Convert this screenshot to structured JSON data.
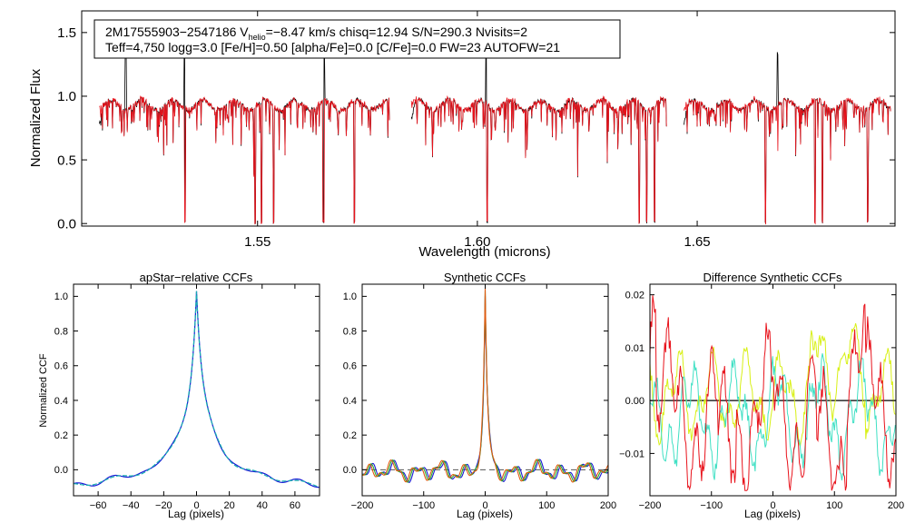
{
  "colors": {
    "black": "#000000",
    "red": "#e8121b",
    "blue": "#1a1ad6",
    "teal": "#18b0b0",
    "orange": "#e05a10",
    "green": "#29a82c",
    "yellow": "#d8f015",
    "cyan": "#3fe0c4",
    "dashed": "#555555"
  },
  "chart_data": [
    {
      "type": "line",
      "name": "spectrum",
      "xlabel": "Wavelength (microns)",
      "ylabel": "Normalized Flux",
      "xlim": [
        1.51,
        1.695
      ],
      "ylim": [
        -0.02,
        1.67
      ],
      "xticks": [
        1.55,
        1.6,
        1.65
      ],
      "xtick_labels": [
        "1.55",
        "1.60",
        "1.65"
      ],
      "yticks": [
        0.0,
        0.5,
        1.0,
        1.5
      ],
      "ytick_labels": [
        "0.0",
        "0.5",
        "1.0",
        "1.5"
      ],
      "info_line1_prefix": "2M17555903−2547186  V",
      "info_line1_sub": "helio",
      "info_line1_suffix": "=−8.47 km/s  chisq=12.94  S/N=290.3  Nvisits=2",
      "info_line2": "Teff=4,750 logg=3.0 [Fe/H]=0.50 [alpha/Fe]=0.0 [C/Fe]=0.0 FW=23 AUTOFW=21",
      "chips": [
        [
          1.514,
          1.58
        ],
        [
          1.585,
          1.643
        ],
        [
          1.647,
          1.694
        ]
      ],
      "continuum": 0.93,
      "series": [
        {
          "name": "observed",
          "color": "black"
        },
        {
          "name": "model",
          "color": "red"
        }
      ],
      "deep_lines": [
        1.5335,
        1.5495,
        1.5509,
        1.5537,
        1.565,
        1.572,
        1.6022,
        1.6368,
        1.6385,
        1.6403,
        1.6655,
        1.6768,
        1.6785,
        1.6888
      ],
      "spikes": [
        1.52,
        1.5334,
        1.5652,
        1.602,
        1.6683
      ]
    },
    {
      "type": "line",
      "name": "apstar-ccf",
      "title": "apStar−relative CCFs",
      "xlabel": "Lag (pixels)",
      "ylabel": "Normalized CCF",
      "xlim": [
        -75,
        75
      ],
      "ylim": [
        -0.15,
        1.07
      ],
      "xticks": [
        -60,
        -40,
        -20,
        0,
        20,
        40,
        60
      ],
      "xtick_labels": [
        "−60",
        "−40",
        "−20",
        "0",
        "20",
        "40",
        "60"
      ],
      "yticks": [
        0.0,
        0.2,
        0.4,
        0.6,
        0.8,
        1.0
      ],
      "ytick_labels": [
        "0.0",
        "0.2",
        "0.4",
        "0.6",
        "0.8",
        "1.0"
      ],
      "series": [
        {
          "name": "visit-1",
          "color": "blue"
        },
        {
          "name": "visit-2",
          "color": "teal",
          "dashed": true
        }
      ],
      "peak": 1.0
    },
    {
      "type": "line",
      "name": "synthetic-ccf",
      "title": "Synthetic CCFs",
      "xlabel": "Lag (pixels)",
      "xlim": [
        -200,
        200
      ],
      "ylim": [
        -0.15,
        1.07
      ],
      "xticks": [
        -200,
        -100,
        0,
        100,
        200
      ],
      "xtick_labels": [
        "−200",
        "−100",
        "0",
        "100",
        "200"
      ],
      "yticks": [
        0.0,
        0.2,
        0.4,
        0.6,
        0.8,
        1.0
      ],
      "ytick_labels": [
        "0.0",
        "0.2",
        "0.4",
        "0.6",
        "0.8",
        "1.0"
      ],
      "series": [
        {
          "name": "synth-1",
          "color": "orange"
        },
        {
          "name": "synth-2",
          "color": "green"
        },
        {
          "name": "synth-3",
          "color": "blue"
        }
      ],
      "zero_line": 0.0,
      "peak": 1.0
    },
    {
      "type": "line",
      "name": "difference-ccf",
      "title": "Difference Synthetic CCFs",
      "xlabel": "Lag (pixels)",
      "xlim": [
        -200,
        200
      ],
      "ylim": [
        -0.018,
        0.022
      ],
      "xticks": [
        -200,
        -100,
        0,
        100,
        200
      ],
      "xtick_labels": [
        "−200",
        "−100",
        "0",
        "100",
        "200"
      ],
      "yticks": [
        -0.01,
        0.0,
        0.01,
        0.02
      ],
      "ytick_labels": [
        "−0.01",
        "0.00",
        "0.01",
        "0.02"
      ],
      "series": [
        {
          "name": "diff-1",
          "color": "red",
          "range": [
            -0.016,
            0.021
          ]
        },
        {
          "name": "diff-2",
          "color": "yellow",
          "range": [
            -0.007,
            0.016
          ]
        },
        {
          "name": "diff-3",
          "color": "cyan",
          "range": [
            -0.012,
            0.012
          ]
        }
      ],
      "zero_line": 0.0
    }
  ]
}
